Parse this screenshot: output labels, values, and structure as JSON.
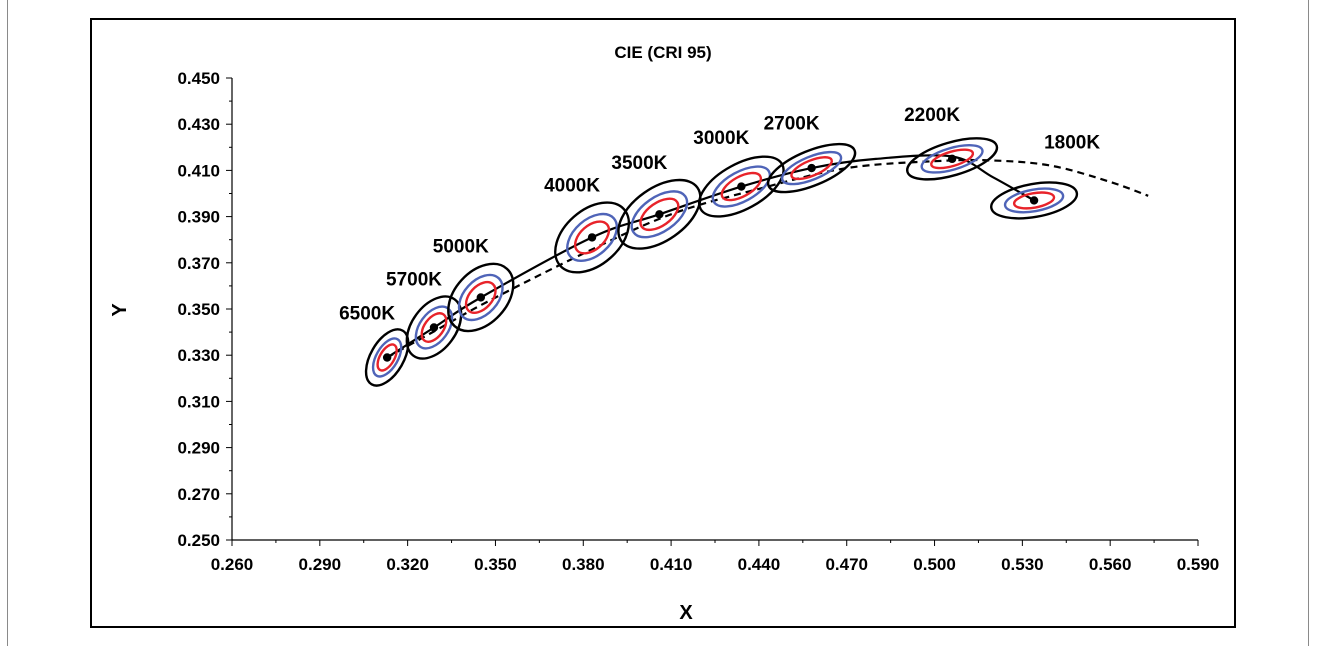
{
  "chart_data": {
    "type": "scatter",
    "title": "CIE (CRI 95)",
    "xlabel": "X",
    "ylabel": "Y",
    "xlim": [
      0.26,
      0.59
    ],
    "ylim": [
      0.25,
      0.45
    ],
    "xticks": [
      "0.260",
      "0.290",
      "0.320",
      "0.350",
      "0.380",
      "0.410",
      "0.440",
      "0.470",
      "0.500",
      "0.530",
      "0.560",
      "0.590"
    ],
    "yticks": [
      "0.250",
      "0.270",
      "0.290",
      "0.310",
      "0.330",
      "0.350",
      "0.370",
      "0.390",
      "0.410",
      "0.430",
      "0.450"
    ],
    "grid": false,
    "points": [
      {
        "label": "6500K",
        "x": 0.313,
        "y": 0.329
      },
      {
        "label": "5700K",
        "x": 0.329,
        "y": 0.342
      },
      {
        "label": "5000K",
        "x": 0.345,
        "y": 0.355
      },
      {
        "label": "4000K",
        "x": 0.383,
        "y": 0.381
      },
      {
        "label": "3500K",
        "x": 0.406,
        "y": 0.391
      },
      {
        "label": "3000K",
        "x": 0.434,
        "y": 0.403
      },
      {
        "label": "2700K",
        "x": 0.458,
        "y": 0.411
      },
      {
        "label": "2200K",
        "x": 0.506,
        "y": 0.415
      },
      {
        "label": "1800K",
        "x": 0.534,
        "y": 0.397
      }
    ],
    "solid_curve": [
      [
        0.313,
        0.329
      ],
      [
        0.329,
        0.342
      ],
      [
        0.345,
        0.355
      ],
      [
        0.383,
        0.381
      ],
      [
        0.406,
        0.391
      ],
      [
        0.434,
        0.403
      ],
      [
        0.458,
        0.411
      ],
      [
        0.48,
        0.415
      ],
      [
        0.506,
        0.416
      ],
      [
        0.52,
        0.407
      ],
      [
        0.534,
        0.397
      ]
    ],
    "dashed_curve": [
      [
        0.313,
        0.329
      ],
      [
        0.33,
        0.341
      ],
      [
        0.347,
        0.353
      ],
      [
        0.38,
        0.374
      ],
      [
        0.41,
        0.391
      ],
      [
        0.44,
        0.402
      ],
      [
        0.47,
        0.411
      ],
      [
        0.5,
        0.414
      ],
      [
        0.52,
        0.4143
      ],
      [
        0.54,
        0.412
      ],
      [
        0.56,
        0.405
      ],
      [
        0.573,
        0.399
      ]
    ],
    "colors": {
      "axis": "#000000",
      "solid_curve": "#000000",
      "dashed_curve": "#000000",
      "ellipse_outer": "#000000",
      "ellipse_mid": "#4f64b8",
      "ellipse_inner": "#e8232a",
      "point": "#000000"
    }
  }
}
